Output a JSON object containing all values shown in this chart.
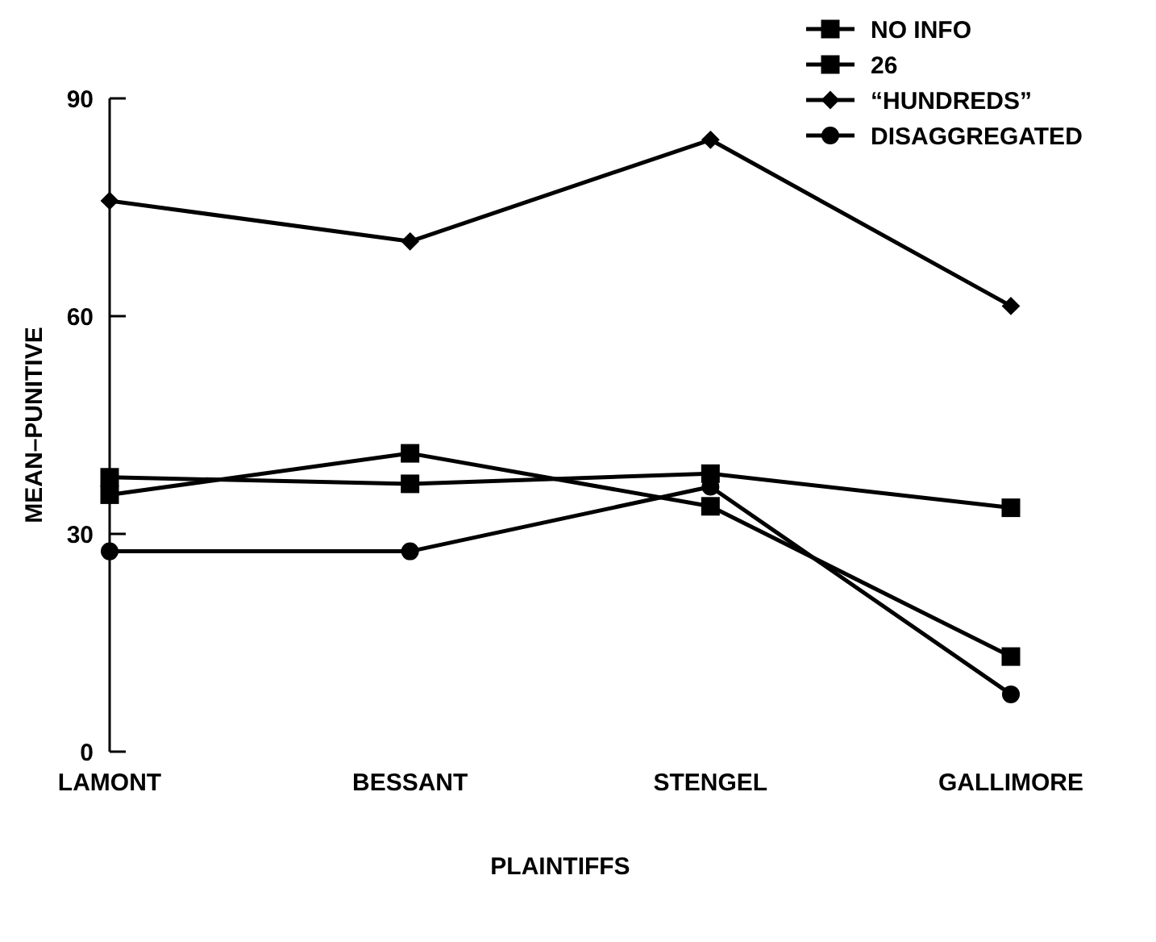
{
  "chart_data": {
    "type": "line",
    "xlabel": "PLAINTIFFS",
    "ylabel": "MEAN–PUNITIVE",
    "categories": [
      "LAMONT",
      "BESSANT",
      "STENGEL",
      "GALLIMORE"
    ],
    "ylim": [
      0,
      90
    ],
    "yticks": [
      0,
      30,
      60,
      90
    ],
    "grid": false,
    "legend": "top right",
    "line_style": "solid",
    "series": [
      {
        "name": "NO INFO",
        "color": "#000000",
        "marker": "square",
        "values": [
          35.4,
          41.1,
          33.8,
          13.1
        ]
      },
      {
        "name": "26",
        "color": "#000000",
        "marker": "square",
        "values": [
          37.8,
          36.9,
          38.3,
          33.6
        ]
      },
      {
        "name": "“HUNDREDS”",
        "color": "#000000",
        "marker": "diamond",
        "values": [
          75.9,
          70.3,
          84.3,
          61.4
        ]
      },
      {
        "name": "DISAGGREGATED",
        "color": "#000000",
        "marker": "circle",
        "values": [
          27.6,
          27.6,
          36.5,
          7.9
        ]
      }
    ]
  }
}
